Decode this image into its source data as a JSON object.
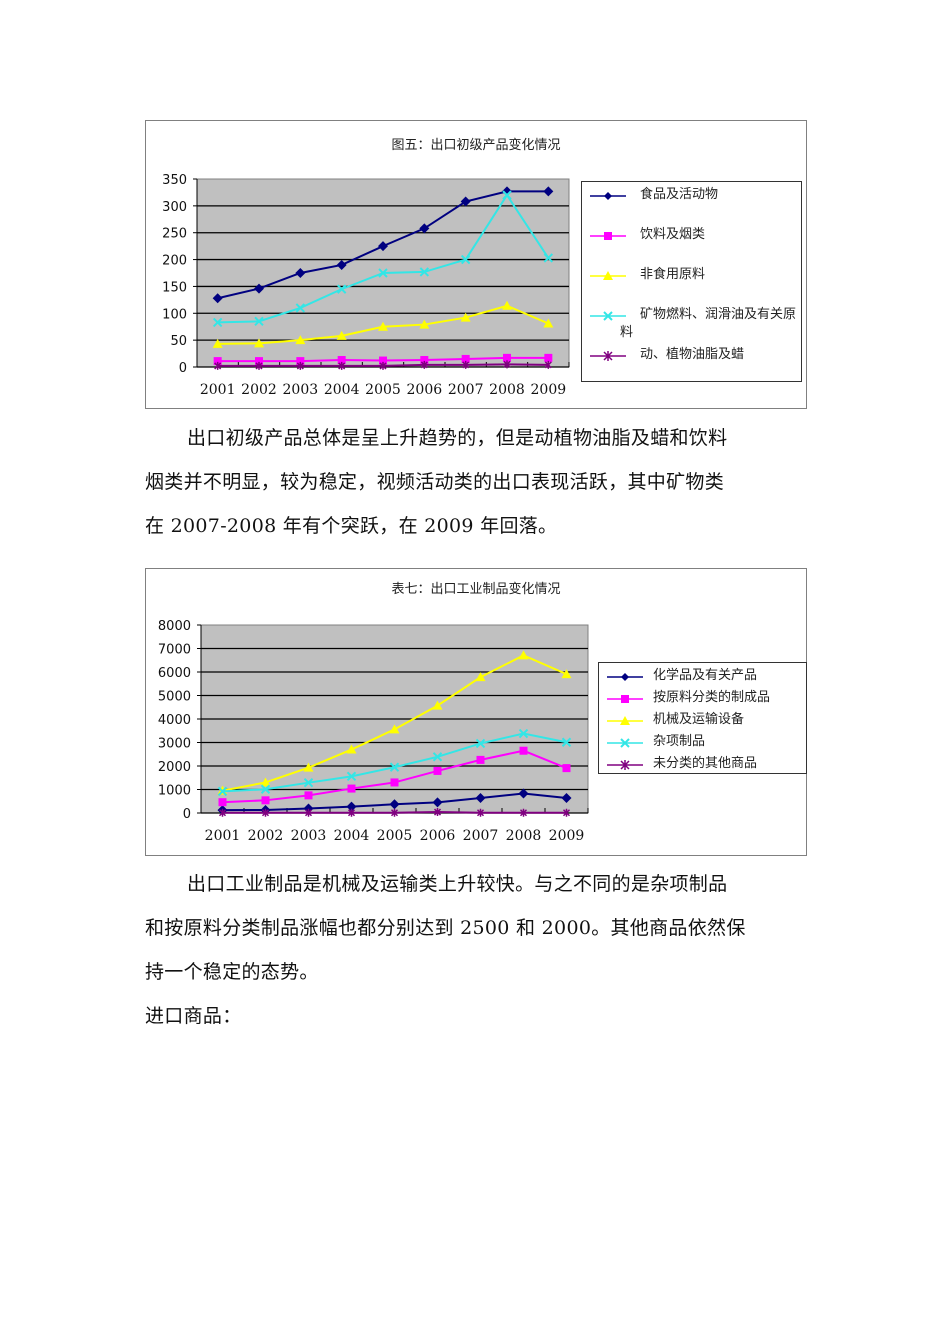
{
  "chart1": {
    "title": "图五：出口初级产品变化情况",
    "chart_data": {
      "type": "line",
      "title": "图五：出口初级产品变化情况",
      "xlabel": "",
      "ylabel": "",
      "categories": [
        "2001",
        "2002",
        "2003",
        "2004",
        "2005",
        "2006",
        "2007",
        "2008",
        "2009"
      ],
      "ylim": [
        0,
        350
      ],
      "yticks": [
        0,
        50,
        100,
        150,
        200,
        250,
        300,
        350
      ],
      "grid": true,
      "legend_position": "right",
      "series": [
        {
          "name": "食品及活动物",
          "color": "#000080",
          "marker": "diamond",
          "values": [
            128,
            146,
            175,
            190,
            225,
            258,
            308,
            327,
            327
          ]
        },
        {
          "name": "饮料及烟类",
          "color": "#ff00ff",
          "marker": "square",
          "values": [
            11,
            11,
            11,
            13,
            12,
            13,
            15,
            17,
            17
          ]
        },
        {
          "name": "非食用原料",
          "color": "#ffff00",
          "marker": "triangle",
          "values": [
            43,
            44,
            50,
            58,
            75,
            79,
            92,
            114,
            81
          ]
        },
        {
          "name": "矿物燃料、润滑油及有关原料",
          "color": "#33e6e6",
          "marker": "x",
          "values": [
            83,
            85,
            110,
            145,
            175,
            177,
            200,
            320,
            203
          ]
        },
        {
          "name": "动、植物油脂及蜡",
          "color": "#800080",
          "marker": "star",
          "values": [
            2,
            2,
            2,
            2,
            2,
            4,
            4,
            5,
            4
          ]
        }
      ]
    },
    "legend": [
      {
        "label": "食品及活动物"
      },
      {
        "label": "饮料及烟类"
      },
      {
        "label": "非食用原料"
      },
      {
        "label": "矿物燃料、润滑油及有关原料"
      },
      {
        "label": "动、植物油脂及蜡"
      }
    ]
  },
  "paragraph1": {
    "lines": [
      "出口初级产品总体是呈上升趋势的，但是动植物油脂及蜡和饮料",
      "烟类并不明显，较为稳定，视频活动类的出口表现活跃，其中矿物类",
      "在 2007-2008 年有个突跃，在 2009 年回落。"
    ]
  },
  "chart2": {
    "title": "表七：出口工业制品变化情况",
    "chart_data": {
      "type": "line",
      "title": "表七：出口工业制品变化情况",
      "xlabel": "",
      "ylabel": "",
      "categories": [
        "2001",
        "2002",
        "2003",
        "2004",
        "2005",
        "2006",
        "2007",
        "2008",
        "2009"
      ],
      "ylim": [
        0,
        8000
      ],
      "yticks": [
        0,
        1000,
        2000,
        3000,
        4000,
        5000,
        6000,
        7000,
        8000
      ],
      "grid": true,
      "legend_position": "right",
      "series": [
        {
          "name": "化学品及有关产品",
          "color": "#000080",
          "marker": "diamond",
          "values": [
            120,
            130,
            190,
            270,
            370,
            450,
            640,
            830,
            640
          ]
        },
        {
          "name": "按原料分类的制成品",
          "color": "#ff00ff",
          "marker": "square",
          "values": [
            460,
            540,
            750,
            1040,
            1300,
            1790,
            2260,
            2650,
            1910
          ]
        },
        {
          "name": "机械及运输设备",
          "color": "#ffff00",
          "marker": "triangle",
          "values": [
            950,
            1300,
            1930,
            2700,
            3560,
            4570,
            5780,
            6710,
            5910
          ]
        },
        {
          "name": "杂项制品",
          "color": "#33e6e6",
          "marker": "x",
          "values": [
            920,
            1010,
            1290,
            1560,
            1950,
            2390,
            2960,
            3380,
            3010
          ]
        },
        {
          "name": "未分类的其他商品",
          "color": "#800080",
          "marker": "star",
          "values": [
            10,
            10,
            10,
            10,
            10,
            40,
            10,
            10,
            10
          ]
        }
      ]
    },
    "legend": [
      {
        "label": "化学品及有关产品"
      },
      {
        "label": "按原料分类的制成品"
      },
      {
        "label": "机械及运输设备"
      },
      {
        "label": "杂项制品"
      },
      {
        "label": "未分类的其他商品"
      }
    ]
  },
  "paragraph2": {
    "lines": [
      "出口工业制品是机械及运输类上升较快。与之不同的是杂项制品",
      "和按原料分类制品涨幅也都分别达到 2500 和 2000。其他商品依然保",
      "持一个稳定的态势。"
    ]
  },
  "heading_import": "进口商品："
}
